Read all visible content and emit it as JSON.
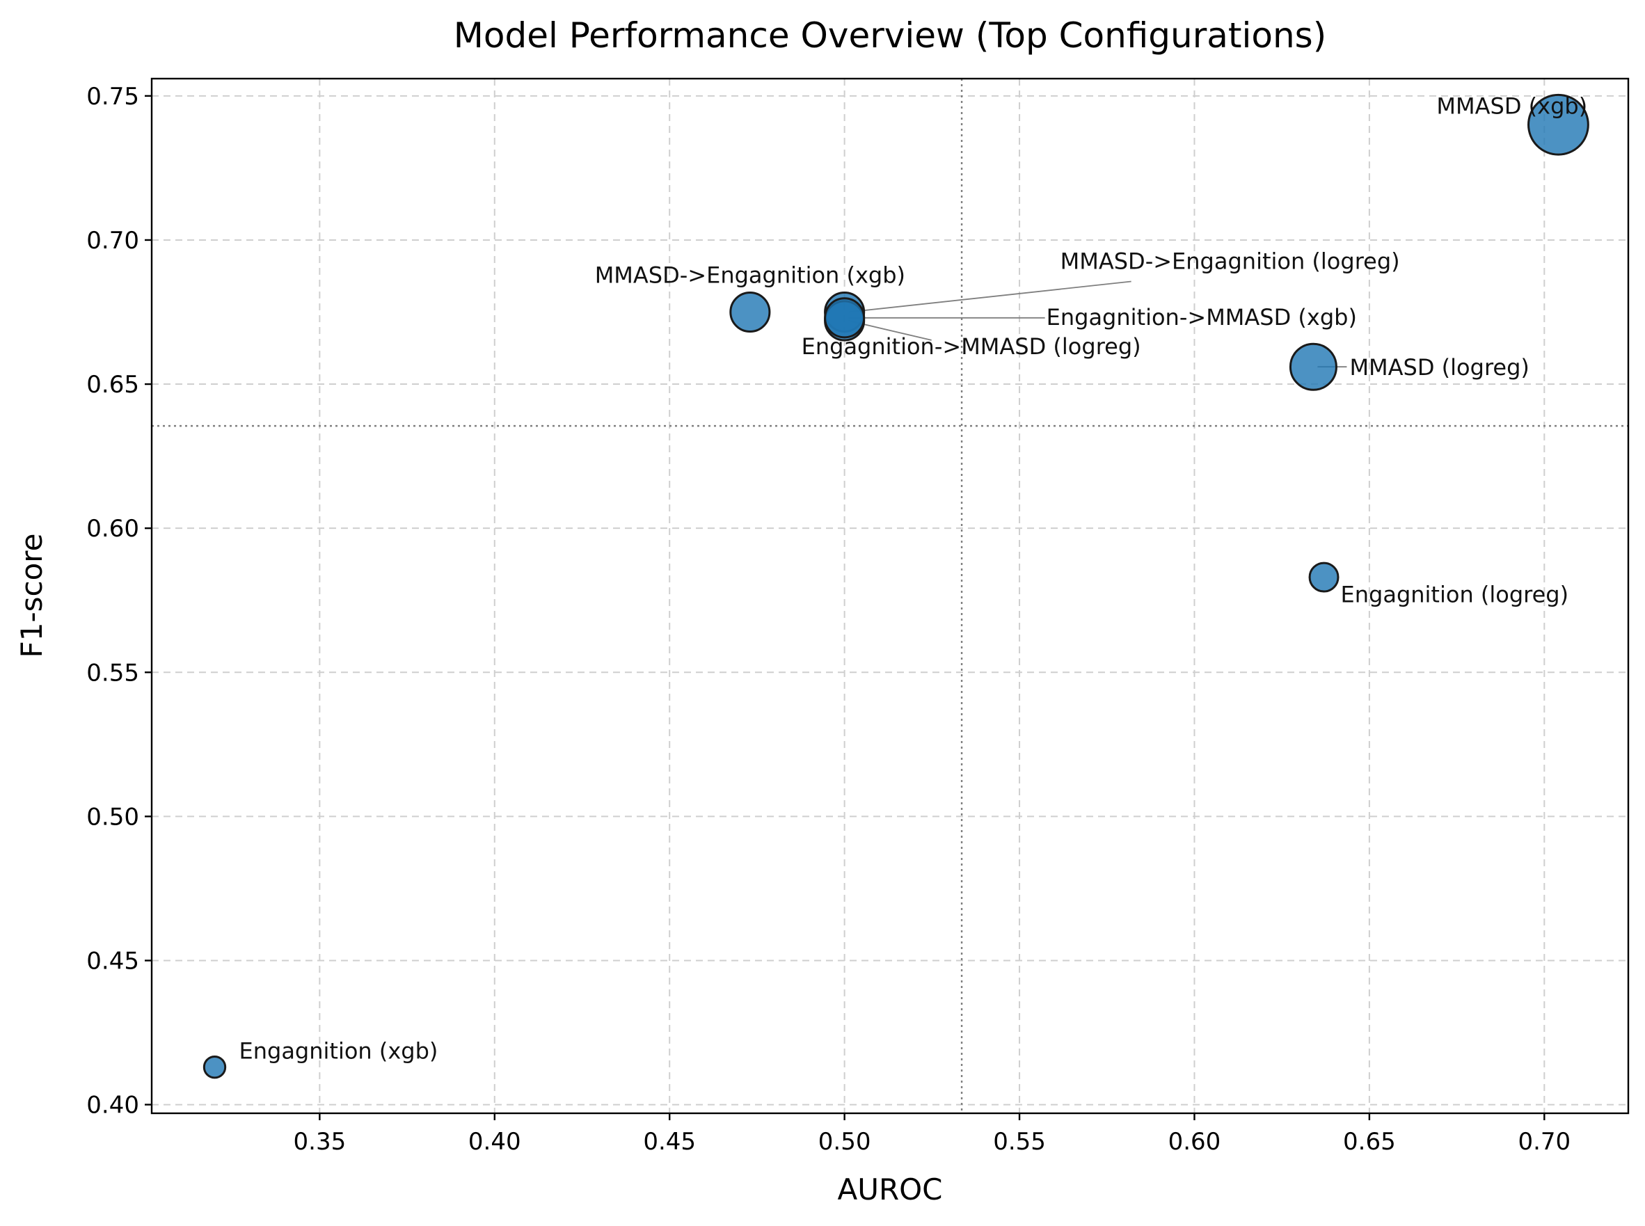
{
  "chart_data": {
    "type": "scatter",
    "title": "Model Performance Overview (Top Configurations)",
    "xlabel": "AUROC",
    "ylabel": "F1-score",
    "xlim": [
      0.302,
      0.724
    ],
    "ylim": [
      0.397,
      0.756
    ],
    "xticks": [
      0.35,
      0.4,
      0.45,
      0.5,
      0.55,
      0.6,
      0.65,
      0.7
    ],
    "xtick_labels": [
      "0.35",
      "0.40",
      "0.45",
      "0.50",
      "0.55",
      "0.60",
      "0.65",
      "0.70"
    ],
    "yticks": [
      0.4,
      0.45,
      0.5,
      0.55,
      0.6,
      0.65,
      0.7,
      0.75
    ],
    "ytick_labels": [
      "0.40",
      "0.45",
      "0.50",
      "0.55",
      "0.60",
      "0.65",
      "0.70",
      "0.75"
    ],
    "grid": true,
    "reference_lines": {
      "x": 0.5335,
      "y": 0.6355
    },
    "point_color": "#1f77b4",
    "edge_color": "#1a1a1a",
    "points": [
      {
        "label": "Engagnition (xgb)",
        "x": 0.32,
        "y": 0.413,
        "size": 0.46
      },
      {
        "label": "MMASD->Engagnition (xgb)",
        "x": 0.473,
        "y": 0.675,
        "size": 0.85
      },
      {
        "label": "MMASD->Engagnition (logreg)",
        "x": 0.5,
        "y": 0.675,
        "size": 0.85
      },
      {
        "label": "Engagnition->MMASD (logreg)",
        "x": 0.5,
        "y": 0.672,
        "size": 0.85
      },
      {
        "label": "Engagnition->MMASD (xgb)",
        "x": 0.5,
        "y": 0.673,
        "size": 0.85
      },
      {
        "label": "MMASD (logreg)",
        "x": 0.634,
        "y": 0.656,
        "size": 1.0
      },
      {
        "label": "Engagnition (logreg)",
        "x": 0.637,
        "y": 0.583,
        "size": 0.62
      },
      {
        "label": "MMASD (xgb)",
        "x": 0.704,
        "y": 0.74,
        "size": 1.3
      }
    ]
  }
}
